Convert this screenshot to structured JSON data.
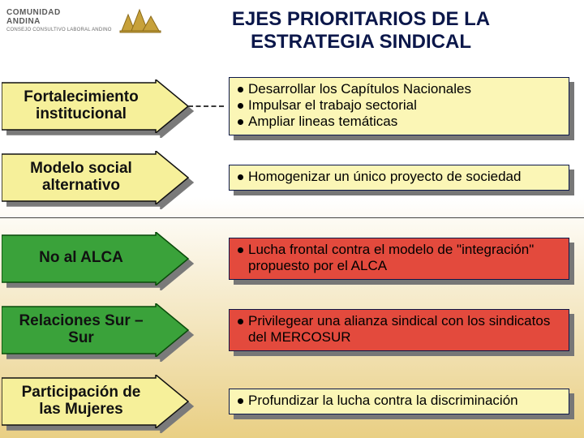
{
  "background": {
    "top_color": "#ffffff",
    "bottom_color": "#e9cf84",
    "gradient_stop": 0.45
  },
  "logo": {
    "org_line1": "COMUNIDAD",
    "org_line2": "ANDINA",
    "sub": "CONSEJO CONSULTIVO LABORAL ANDINO",
    "icon_fill": "#c7a13a",
    "icon_stroke": "#8a6a1a"
  },
  "title": {
    "line1": "EJES PRIORITARIOS DE LA",
    "line2": "ESTRATEGIA SINDICAL",
    "color": "#0b174a",
    "fontsize": 24
  },
  "arrow_shadow_color": "#7a7a7a",
  "bullet_box_border": "#0b174a",
  "rows": [
    {
      "id": "fortalecimiento",
      "label": "Fortalecimiento institucional",
      "arrow_fill": "#f6f09a",
      "arrow_stroke": "#111111",
      "box_fill": "#fbf6b6",
      "bullets": [
        "Desarrollar los Capítulos Nacionales",
        "Impulsar el trabajo sectorial",
        "Ampliar lineas temáticas"
      ]
    },
    {
      "id": "modelo-social",
      "label": "Modelo social alternativo",
      "arrow_fill": "#f6f09a",
      "arrow_stroke": "#111111",
      "box_fill": "#fbf6b6",
      "bullets": [
        "Homogenizar un único proyecto de sociedad"
      ]
    },
    {
      "id": "no-al-alca",
      "label": "No al ALCA",
      "arrow_fill": "#3aa23a",
      "arrow_stroke": "#0a4a0a",
      "box_fill": "#e34a3d",
      "bullets": [
        "Lucha frontal contra el modelo de \"integración\" propuesto por el ALCA"
      ]
    },
    {
      "id": "sur-sur",
      "label": "Relaciones Sur – Sur",
      "arrow_fill": "#3aa23a",
      "arrow_stroke": "#0a4a0a",
      "box_fill": "#e34a3d",
      "bullets": [
        "Privilegear una alianza sindical con los sindicatos del MERCOSUR"
      ]
    },
    {
      "id": "mujeres",
      "label": "Participación de las Mujeres",
      "arrow_fill": "#f6f09a",
      "arrow_stroke": "#111111",
      "box_fill": "#fbf6b6",
      "bullets": [
        "Profundizar la lucha contra la discriminación"
      ]
    }
  ],
  "divider_after_row_index": 1
}
